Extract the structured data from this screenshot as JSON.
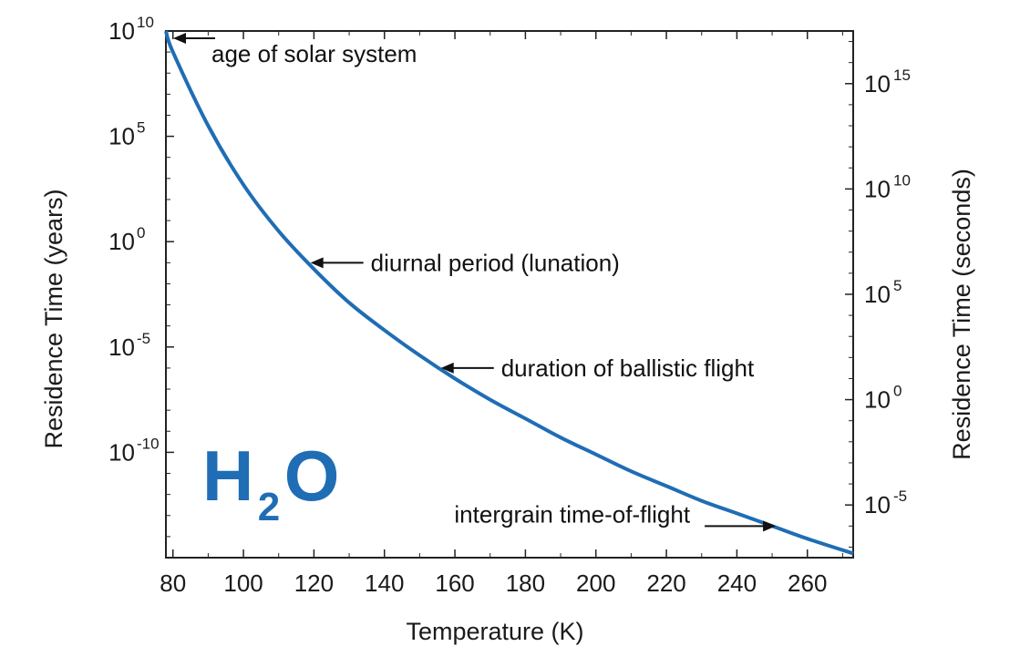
{
  "chart_data": {
    "type": "line",
    "xlabel": "Temperature (K)",
    "ylabel_left": "Residence Time (years)",
    "ylabel_right": "Residence Time (seconds)",
    "xlim": [
      78,
      273
    ],
    "ylim_log10_years": [
      -15.0,
      10.0
    ],
    "yscale": "log",
    "x_ticks": [
      80,
      100,
      120,
      140,
      160,
      180,
      200,
      220,
      240,
      260
    ],
    "y_left_ticks": [
      {
        "base": "10",
        "exp": "10",
        "log10": 10
      },
      {
        "base": "10",
        "exp": "5",
        "log10": 5
      },
      {
        "base": "10",
        "exp": "0",
        "log10": 0
      },
      {
        "base": "10",
        "exp": "-5",
        "log10": -5
      },
      {
        "base": "10",
        "exp": "-10",
        "log10": -10
      }
    ],
    "y_right_ticks": [
      {
        "base": "10",
        "exp": "15",
        "log10": 15
      },
      {
        "base": "10",
        "exp": "10",
        "log10": 10
      },
      {
        "base": "10",
        "exp": "5",
        "log10": 5
      },
      {
        "base": "10",
        "exp": "0",
        "log10": 0
      },
      {
        "base": "10",
        "exp": "-5",
        "log10": -5
      }
    ],
    "grid": false,
    "series": [
      {
        "color": "#1f6db5",
        "x": [
          78,
          80,
          90,
          100,
          110,
          120,
          130,
          140,
          150,
          160,
          170,
          180,
          190,
          200,
          210,
          220,
          230,
          240,
          250,
          260,
          273
        ],
        "log10_years": [
          10.0,
          9.0,
          5.5,
          2.7,
          0.5,
          -1.3,
          -2.9,
          -4.2,
          -5.4,
          -6.5,
          -7.5,
          -8.4,
          -9.3,
          -10.1,
          -10.9,
          -11.6,
          -12.3,
          -12.9,
          -13.5,
          -14.1,
          -14.8
        ]
      }
    ],
    "annotations": [
      {
        "text": "age of solar system",
        "x": 78,
        "log10_years": 10.0
      },
      {
        "text": "diurnal period (lunation)",
        "x": 118,
        "log10_years": -1.0
      },
      {
        "text": "duration of ballistic flight",
        "x": 155,
        "log10_years": -6.0
      },
      {
        "text": "intergrain time-of-flight",
        "x": 250,
        "log10_years": -13.5
      }
    ],
    "species_label": {
      "main": "H",
      "sub": "2",
      "tail": "O"
    }
  }
}
